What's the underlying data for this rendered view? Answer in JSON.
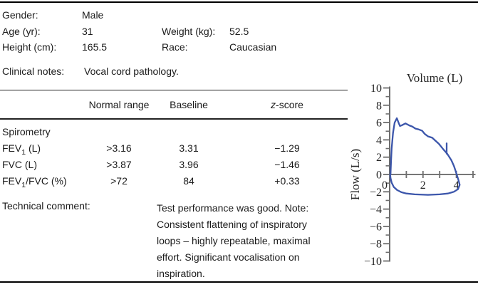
{
  "patient": {
    "gender_label": "Gender:",
    "gender_value": "Male",
    "age_label": "Age (yr):",
    "age_value": "31",
    "weight_label": "Weight (kg):",
    "weight_value": "52.5",
    "height_label": "Height (cm):",
    "height_value": "165.5",
    "race_label": "Race:",
    "race_value": "Caucasian"
  },
  "clinical_notes": {
    "label": "Clinical notes:",
    "value": "Vocal cord pathology."
  },
  "results_table": {
    "header_normal_range": "Normal range",
    "header_baseline": "Baseline",
    "header_z_italic": "z",
    "header_z_rest": "-score",
    "section_label": "Spirometry",
    "rows": [
      {
        "name": "FEV",
        "sub": "1",
        "rest": " (L)",
        "normal_range": ">3.16",
        "baseline": "3.31",
        "z_score": "−1.29"
      },
      {
        "name": "FVC",
        "sub": "",
        "rest": " (L)",
        "normal_range": ">3.87",
        "baseline": "3.96",
        "z_score": "−1.46"
      },
      {
        "name": "FEV",
        "sub": "1",
        "rest": "/FVC (%)",
        "normal_range": ">72",
        "baseline": "84",
        "z_score": "+0.33"
      }
    ]
  },
  "technical_comment": {
    "label": "Technical comment:",
    "text": "Test performance was good. Note: Consistent flattening of inspiratory loops – highly repeatable, maximal effort. Significant vocalisation on inspiration."
  },
  "chart_data": {
    "type": "line",
    "title": "",
    "xlabel": "Volume (L)",
    "ylabel": "Flow (L/s)",
    "xlim": [
      0,
      5.15
    ],
    "ylim": [
      -10,
      10
    ],
    "grid": false,
    "legend": "none",
    "line_color": "#3c56ab",
    "x_major_ticks": [
      1,
      2,
      3,
      4,
      5
    ],
    "x_tick_labels": [
      {
        "value": 0,
        "label": "0"
      },
      {
        "value": 2,
        "label": "2"
      },
      {
        "value": 4,
        "label": "4"
      }
    ],
    "y_major_ticks": [
      -10,
      -8,
      -6,
      -4,
      -2,
      0,
      2,
      4,
      6,
      8,
      10
    ],
    "y_minor_ticks": [
      -9,
      -7,
      -5,
      -3,
      -1,
      1,
      3,
      5,
      7,
      9
    ],
    "series": [
      {
        "name": "expiratory-limb",
        "x": [
          0.05,
          0.08,
          0.12,
          0.2,
          0.3,
          0.43,
          0.55,
          0.62,
          0.75,
          0.95,
          1.1,
          1.2,
          1.35,
          1.55,
          1.75,
          1.95,
          2.1,
          2.3,
          2.55,
          2.75,
          2.95,
          3.2,
          3.45,
          3.7,
          3.85,
          3.95,
          4.02
        ],
        "y": [
          0,
          1.5,
          3.0,
          4.8,
          6.0,
          6.5,
          5.9,
          5.6,
          5.7,
          5.9,
          5.75,
          5.65,
          5.55,
          5.3,
          5.2,
          5.05,
          4.7,
          4.4,
          4.25,
          3.9,
          3.55,
          2.95,
          2.4,
          1.65,
          1.0,
          0.45,
          0
        ]
      },
      {
        "name": "inspiratory-limb",
        "x": [
          4.02,
          4.12,
          4.2,
          4.1,
          3.85,
          3.5,
          3.0,
          2.3,
          1.5,
          1.0,
          0.7,
          0.45,
          0.25,
          0.12,
          0.05,
          0.03
        ],
        "y": [
          0,
          -0.6,
          -1.2,
          -1.7,
          -2.0,
          -2.2,
          -2.3,
          -2.35,
          -2.3,
          -2.2,
          -2.05,
          -1.8,
          -1.45,
          -0.95,
          -0.4,
          0
        ]
      },
      {
        "name": "artifact-spike",
        "x": [
          3.42,
          3.42
        ],
        "y": [
          2.4,
          3.6
        ]
      }
    ]
  }
}
